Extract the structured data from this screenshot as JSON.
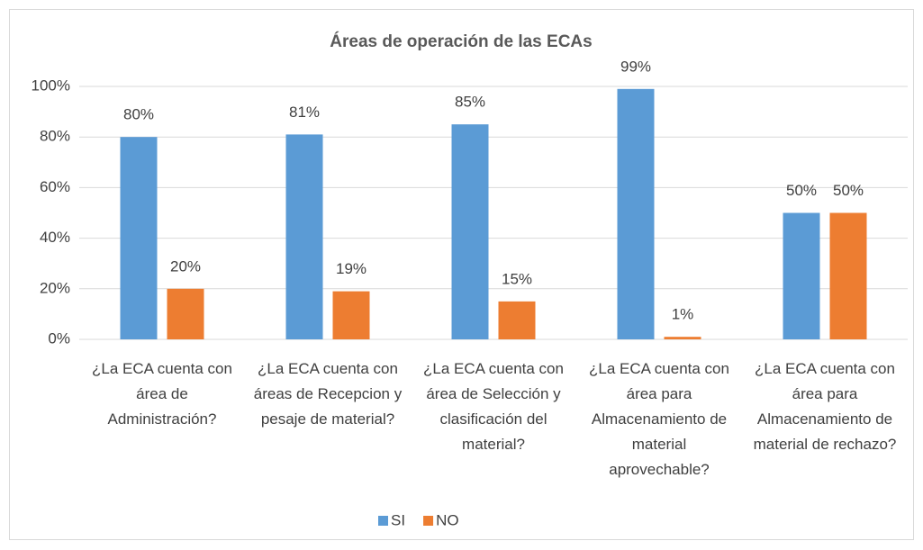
{
  "chart_data": {
    "type": "bar",
    "title": "Áreas de operación de las ECAs",
    "categories": [
      "¿La ECA cuenta con área de Administración?",
      "¿La ECA cuenta con áreas de Recepcion y pesaje de material?",
      "¿La ECA cuenta con área de Selección y clasificación del material?",
      "¿La ECA cuenta con área para Almacenamiento de material aprovechable?",
      "¿La ECA cuenta con área para Almacenamiento de material de rechazo?"
    ],
    "series": [
      {
        "name": "SI",
        "color": "#5b9bd5",
        "values": [
          80,
          81,
          85,
          99,
          50
        ],
        "value_labels": [
          "80%",
          "81%",
          "85%",
          "99%",
          "50%"
        ]
      },
      {
        "name": "NO",
        "color": "#ed7d31",
        "values": [
          20,
          19,
          15,
          1,
          50
        ],
        "value_labels": [
          "20%",
          "19%",
          "15%",
          "1%",
          "50%"
        ]
      }
    ],
    "ylim": [
      0,
      100
    ],
    "yticks": [
      {
        "value": 0,
        "label": "0%"
      },
      {
        "value": 20,
        "label": "20%"
      },
      {
        "value": 40,
        "label": "40%"
      },
      {
        "value": 60,
        "label": "60%"
      },
      {
        "value": 80,
        "label": "80%"
      },
      {
        "value": 100,
        "label": "100%"
      }
    ],
    "grid": true,
    "legend": "bottom"
  }
}
